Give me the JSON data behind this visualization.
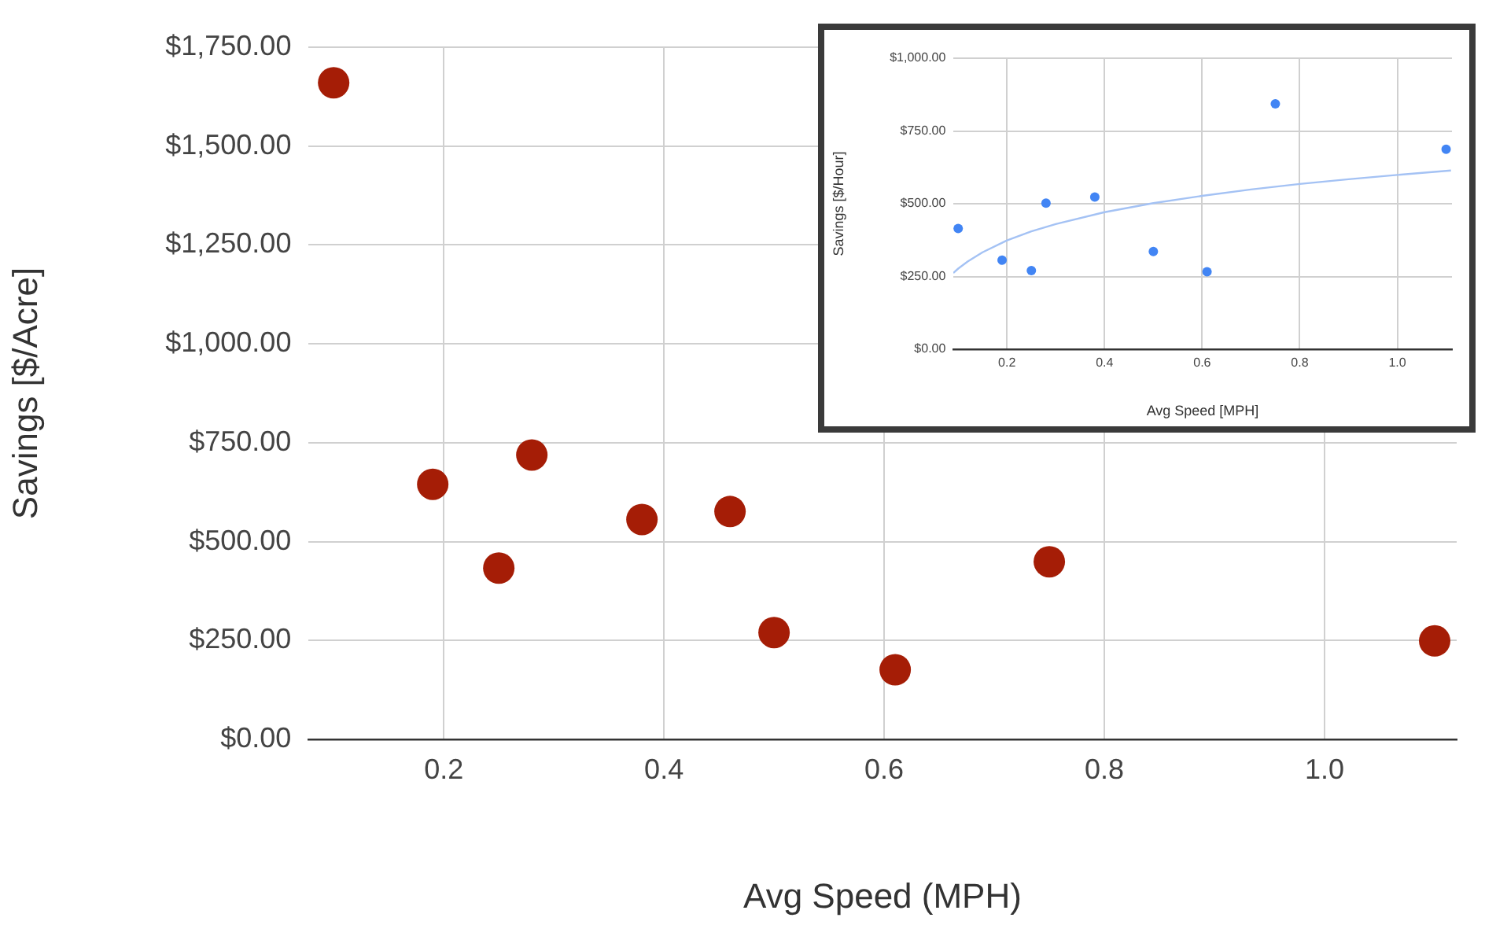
{
  "chart_data": [
    {
      "type": "scatter",
      "xlabel": "Avg Speed (MPH)",
      "ylabel": "Savings [$/Acre]",
      "color": "#a51d06",
      "marker": "circle",
      "grid": true,
      "x": [
        0.1,
        0.19,
        0.25,
        0.28,
        0.38,
        0.46,
        0.5,
        0.61,
        0.75,
        1.1
      ],
      "values": [
        1660,
        645,
        433,
        719,
        556,
        576,
        270,
        176,
        449,
        249
      ],
      "xlim": [
        0.077,
        1.12
      ],
      "xticks": [
        0.2,
        0.4,
        0.6,
        0.8,
        {
          "value": 1,
          "label": "1.0"
        }
      ],
      "ylim": [
        0,
        1750
      ],
      "yticks": [
        {
          "value": 0,
          "label": "$0.00"
        },
        {
          "value": 250,
          "label": "$250.00"
        },
        {
          "value": 500,
          "label": "$500.00"
        },
        {
          "value": 750,
          "label": "$750.00"
        },
        {
          "value": 1000,
          "label": "$1,000.00"
        },
        {
          "value": 1250,
          "label": "$1,250.00"
        },
        {
          "value": 1500,
          "label": "$1,500.00"
        },
        {
          "value": 1750,
          "label": "$1,750.00"
        }
      ]
    },
    {
      "type": "scatter",
      "xlabel": "Avg Speed [MPH]",
      "ylabel": "Savings [$/Hour]",
      "grid": true,
      "series": [
        {
          "type": "scatter",
          "marker": "circle",
          "color": "#4285f4",
          "x": [
            0.1,
            0.19,
            0.25,
            0.28,
            0.38,
            0.5,
            0.61,
            0.75,
            1.1
          ],
          "values": [
            415,
            306,
            270,
            502,
            523,
            336,
            266,
            843,
            687
          ]
        },
        {
          "type": "line",
          "color": "#a4c2f4",
          "x": [
            0.09,
            0.1,
            0.12,
            0.15,
            0.2,
            0.25,
            0.3,
            0.4,
            0.5,
            0.6,
            0.7,
            0.8,
            0.9,
            1.0,
            1.11
          ],
          "values": [
            262,
            277,
            302,
            333,
            374,
            405,
            430,
            471,
            502,
            527,
            549,
            568,
            584,
            599,
            614
          ]
        }
      ],
      "xlim": [
        0.09,
        1.112
      ],
      "xticks": [
        0.2,
        0.4,
        0.6,
        0.8,
        {
          "value": 1,
          "label": "1.0"
        }
      ],
      "ylim": [
        0,
        1000
      ],
      "yticks": [
        {
          "value": 0,
          "label": "$0.00"
        },
        {
          "value": 250,
          "label": "$250.00"
        },
        {
          "value": 500,
          "label": "$500.00"
        },
        {
          "value": 750,
          "label": "$750.00"
        },
        {
          "value": 1000,
          "label": "$1,000.00"
        }
      ]
    }
  ]
}
